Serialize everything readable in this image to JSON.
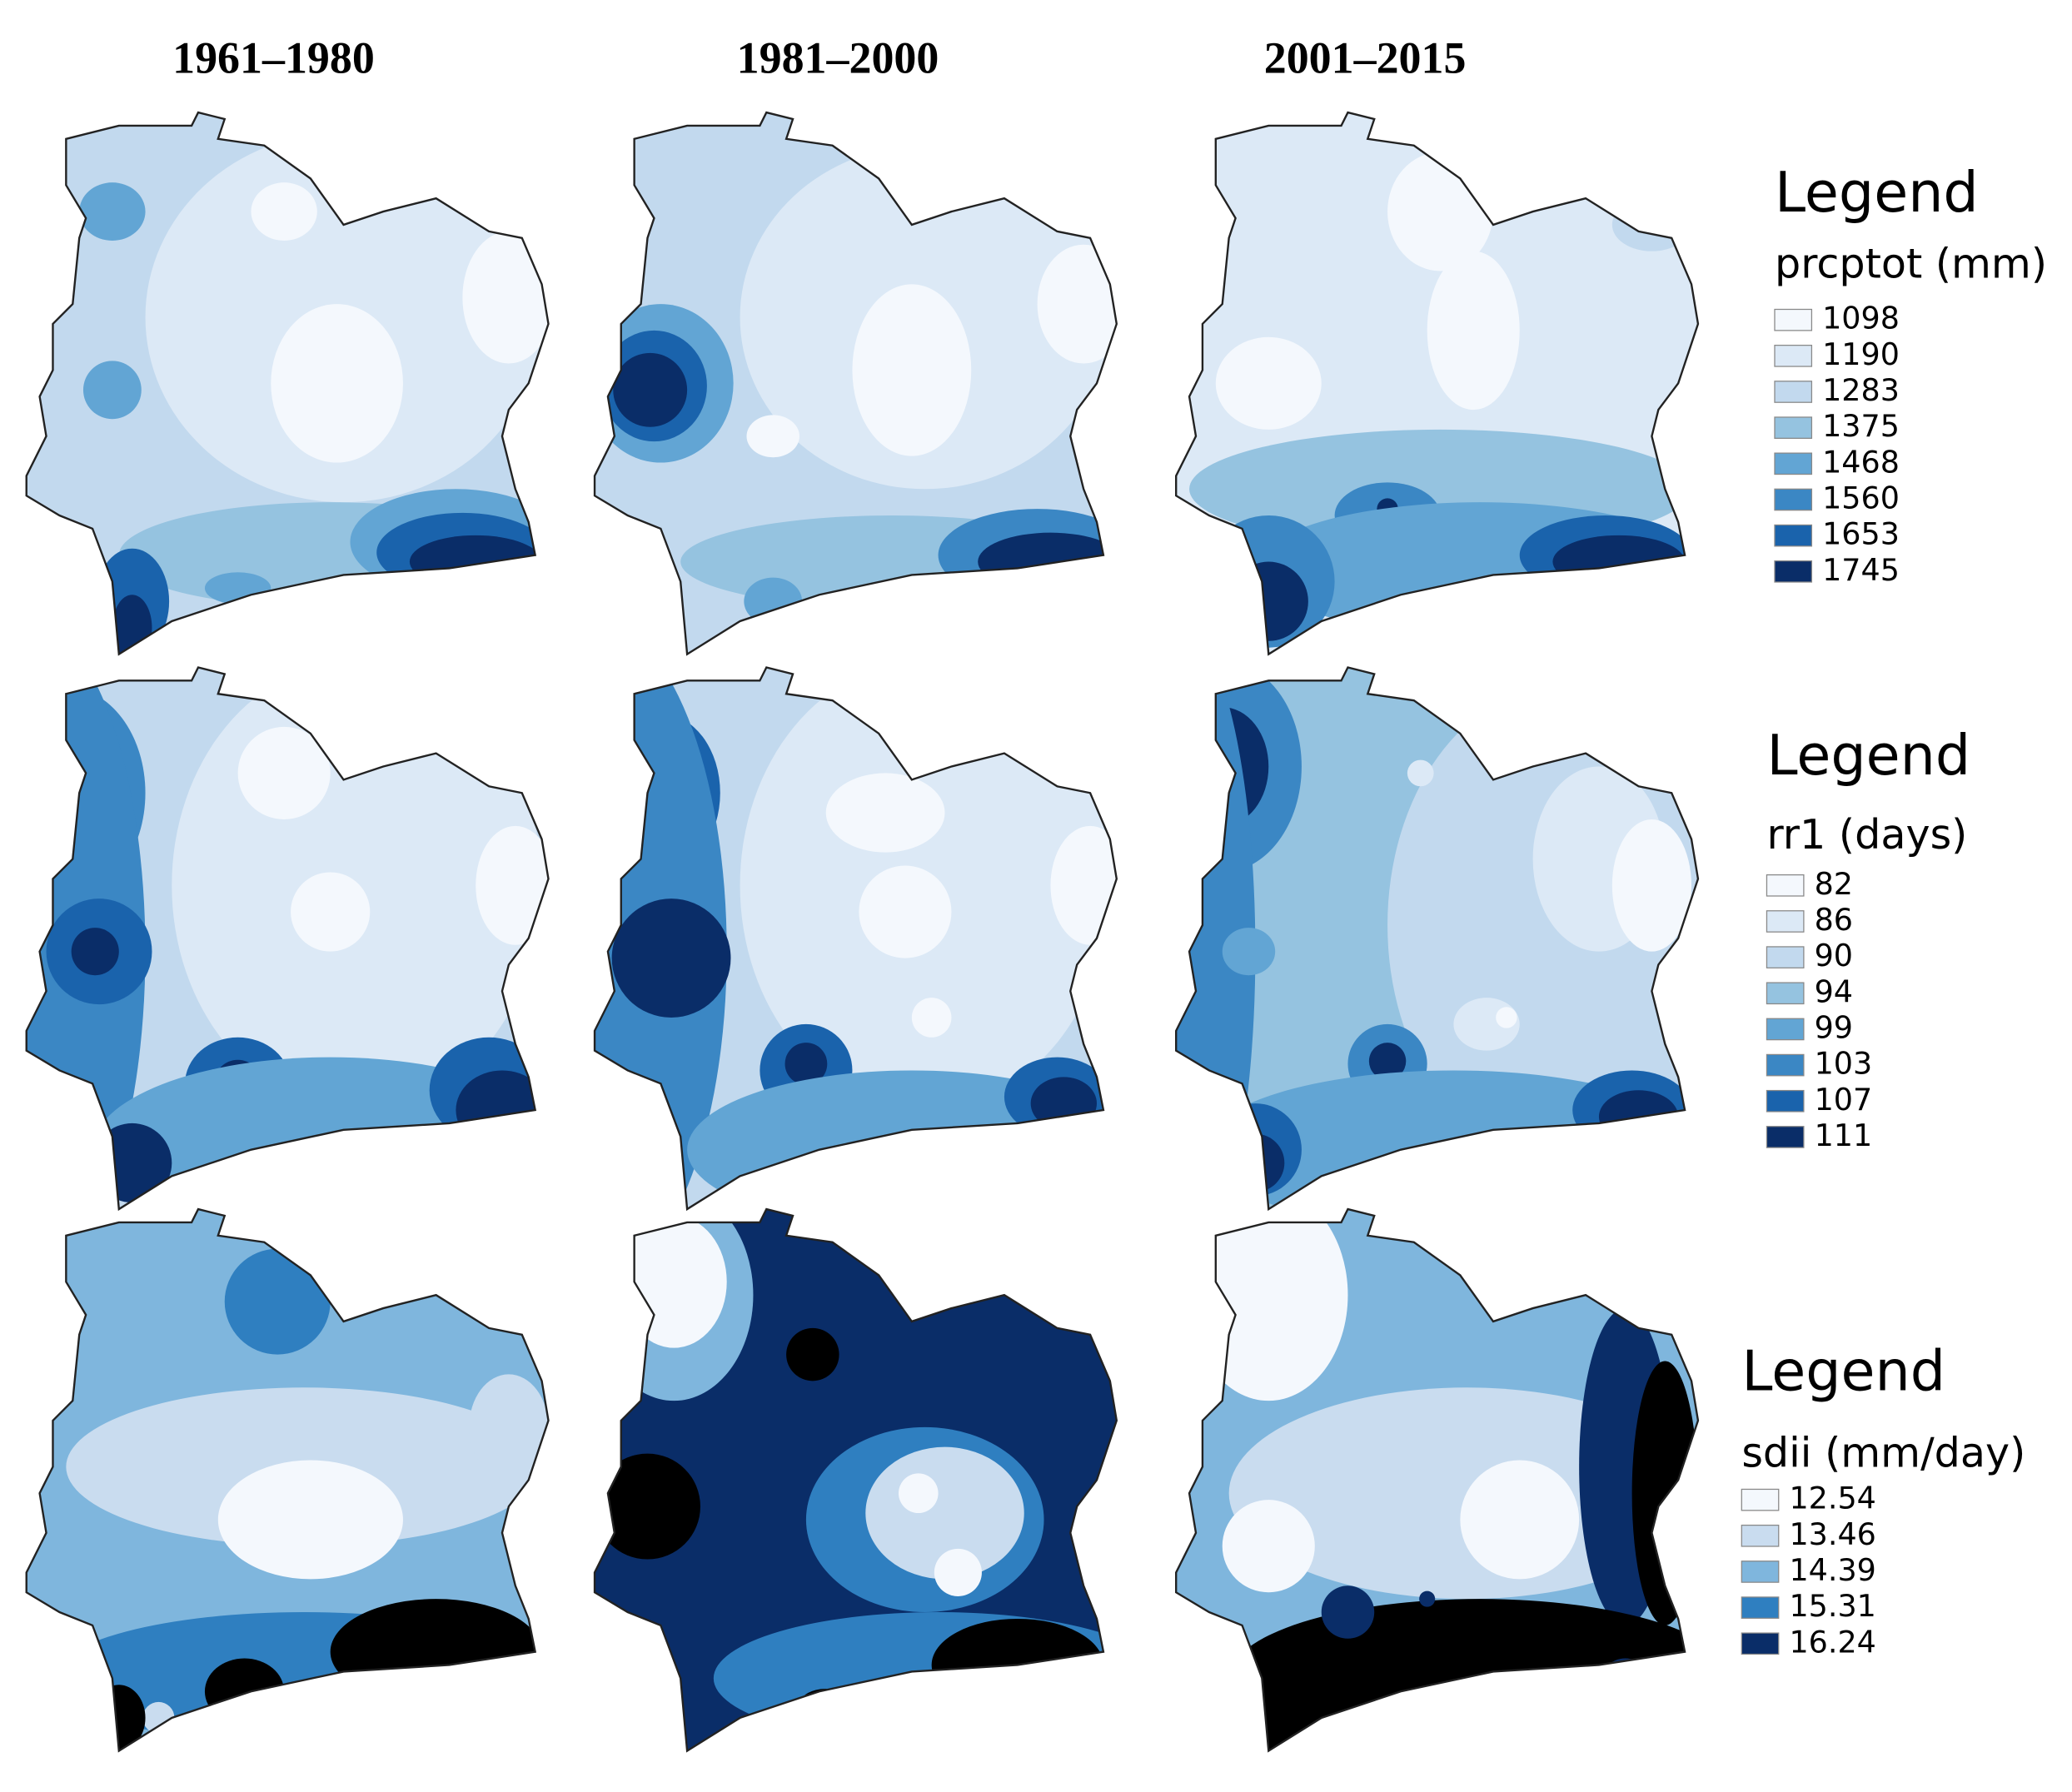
{
  "column_titles": [
    "1961–1980",
    "1981–2000",
    "2001–2015"
  ],
  "legends": [
    {
      "heading": "Legend",
      "title": "prcptot (mm)",
      "items": [
        {
          "value": 1098,
          "color": "#f4f8fd"
        },
        {
          "value": 1190,
          "color": "#dce9f6"
        },
        {
          "value": 1283,
          "color": "#c2d9ee"
        },
        {
          "value": 1375,
          "color": "#95c3e0"
        },
        {
          "value": 1468,
          "color": "#62a5d4"
        },
        {
          "value": 1560,
          "color": "#3b87c4"
        },
        {
          "value": 1653,
          "color": "#1a63ac"
        },
        {
          "value": 1745,
          "color": "#0a2d68"
        }
      ]
    },
    {
      "heading": "Legend",
      "title": "rr1 (days)",
      "items": [
        {
          "value": 82,
          "color": "#f4f8fd"
        },
        {
          "value": 86,
          "color": "#dce9f6"
        },
        {
          "value": 90,
          "color": "#c2d9ee"
        },
        {
          "value": 94,
          "color": "#95c3e0"
        },
        {
          "value": 99,
          "color": "#62a5d4"
        },
        {
          "value": 103,
          "color": "#3b87c4"
        },
        {
          "value": 107,
          "color": "#1a63ac"
        },
        {
          "value": 111,
          "color": "#0a2d68"
        }
      ]
    },
    {
      "heading": "Legend",
      "title": "sdii (mm/day)",
      "items": [
        {
          "value": 12.54,
          "color": "#f4f8fd"
        },
        {
          "value": 13.46,
          "color": "#c9dcef"
        },
        {
          "value": 14.39,
          "color": "#7fb6dd"
        },
        {
          "value": 15.31,
          "color": "#2f7fc0"
        },
        {
          "value": 16.24,
          "color": "#0a2d68"
        }
      ]
    }
  ]
}
